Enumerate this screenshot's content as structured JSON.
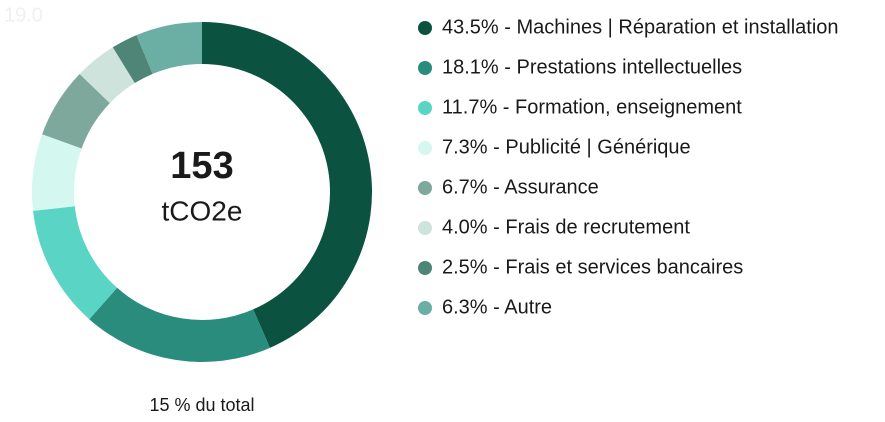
{
  "chart_data": {
    "type": "donut",
    "annotation": "19.0",
    "center_value": "153",
    "center_unit": "tCO2e",
    "footer": "15 % du total",
    "categories": [
      "43.5% - Machines | Réparation et installation",
      "18.1% - Prestations intellectuelles",
      "11.7% - Formation, enseignement",
      "7.3% - Publicité | Générique",
      "6.7% - Assurance",
      "4.0% - Frais de recrutement",
      "2.5% - Frais et services bancaires",
      "6.3% - Autre"
    ],
    "values": [
      43.5,
      18.1,
      11.7,
      7.3,
      6.7,
      4.0,
      2.5,
      6.3
    ],
    "colors": [
      "#0b5240",
      "#2a8c7c",
      "#5ad4c4",
      "#d4f7f0",
      "#7fa89c",
      "#cde3dc",
      "#4f8576",
      "#6aaea4"
    ]
  }
}
